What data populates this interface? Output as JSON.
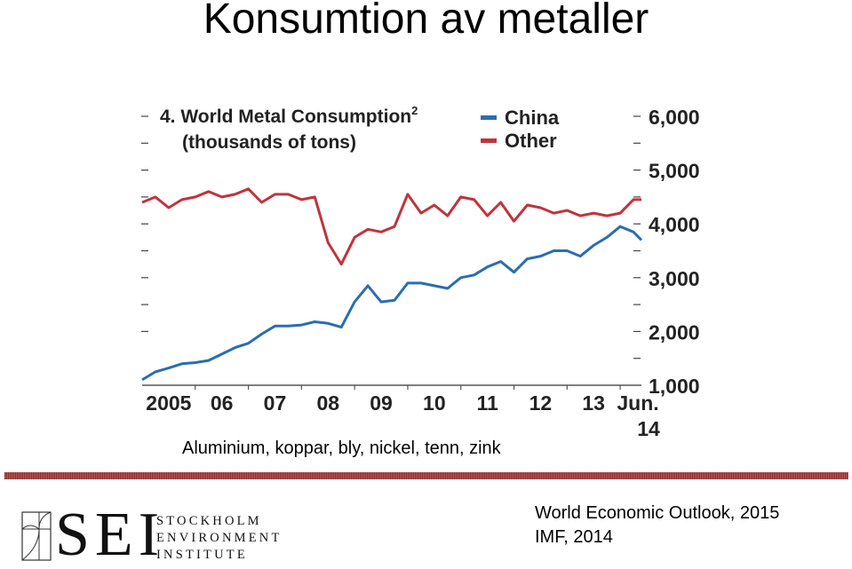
{
  "slide": {
    "title": "Konsumtion av metaller",
    "caption": "Aluminium, koppar, bly, nickel, tenn, zink",
    "source_line1": "World Economic Outlook, 2015",
    "source_line2": "IMF, 2014",
    "logo": {
      "letters": "SEI",
      "line1": "STOCKHOLM",
      "line2": "ENVIRONMENT",
      "line3": "INSTITUTE"
    }
  },
  "chart_data": {
    "type": "line",
    "title": "4. World Metal Consumption",
    "title_superscript": "2",
    "subtitle": "(thousands of tons)",
    "y_ticks": [
      "1,000",
      "2,000",
      "3,000",
      "4,000",
      "5,000",
      "6,000"
    ],
    "ylim": [
      1000,
      6000
    ],
    "x_ticks": [
      {
        "label": "2005",
        "x": 2005.0
      },
      {
        "label": "06",
        "x": 2006.0
      },
      {
        "label": "07",
        "x": 2007.0
      },
      {
        "label": "08",
        "x": 2008.0
      },
      {
        "label": "09",
        "x": 2009.0
      },
      {
        "label": "10",
        "x": 2010.0
      },
      {
        "label": "11",
        "x": 2011.0
      },
      {
        "label": "12",
        "x": 2012.0
      },
      {
        "label": "13",
        "x": 2013.0
      },
      {
        "label": "Jun.",
        "label2": "14",
        "x": 2014.0
      }
    ],
    "xlim": [
      2005.0,
      2014.5
    ],
    "grid": false,
    "legend_position": "top",
    "series": [
      {
        "name": "China",
        "color": "#2a6db3",
        "x": [
          2005.0,
          2005.25,
          2005.5,
          2005.75,
          2006.0,
          2006.25,
          2006.5,
          2006.75,
          2007.0,
          2007.25,
          2007.5,
          2007.75,
          2008.0,
          2008.25,
          2008.5,
          2008.75,
          2009.0,
          2009.25,
          2009.5,
          2009.75,
          2010.0,
          2010.25,
          2010.5,
          2010.75,
          2011.0,
          2011.25,
          2011.5,
          2011.75,
          2012.0,
          2012.25,
          2012.5,
          2012.75,
          2013.0,
          2013.25,
          2013.5,
          2013.75,
          2014.0,
          2014.25,
          2014.4
        ],
        "values": [
          1100,
          1250,
          1320,
          1400,
          1420,
          1460,
          1580,
          1700,
          1780,
          1950,
          2100,
          2100,
          2120,
          2180,
          2150,
          2080,
          2550,
          2850,
          2550,
          2580,
          2900,
          2900,
          2850,
          2800,
          3000,
          3050,
          3200,
          3300,
          3100,
          3350,
          3400,
          3500,
          3500,
          3400,
          3600,
          3750,
          3950,
          3850,
          3700
        ]
      },
      {
        "name": "Other",
        "color": "#c0343c",
        "x": [
          2005.0,
          2005.25,
          2005.5,
          2005.75,
          2006.0,
          2006.25,
          2006.5,
          2006.75,
          2007.0,
          2007.25,
          2007.5,
          2007.75,
          2008.0,
          2008.25,
          2008.5,
          2008.75,
          2009.0,
          2009.25,
          2009.5,
          2009.75,
          2010.0,
          2010.25,
          2010.5,
          2010.75,
          2011.0,
          2011.25,
          2011.5,
          2011.75,
          2012.0,
          2012.25,
          2012.5,
          2012.75,
          2013.0,
          2013.25,
          2013.5,
          2013.75,
          2014.0,
          2014.25,
          2014.4
        ],
        "values": [
          4400,
          4500,
          4300,
          4450,
          4500,
          4600,
          4500,
          4550,
          4650,
          4400,
          4550,
          4550,
          4450,
          4500,
          3650,
          3250,
          3750,
          3900,
          3850,
          3950,
          4550,
          4200,
          4350,
          4150,
          4500,
          4450,
          4150,
          4400,
          4050,
          4350,
          4300,
          4200,
          4250,
          4150,
          4200,
          4150,
          4200,
          4450,
          4450
        ]
      }
    ]
  }
}
